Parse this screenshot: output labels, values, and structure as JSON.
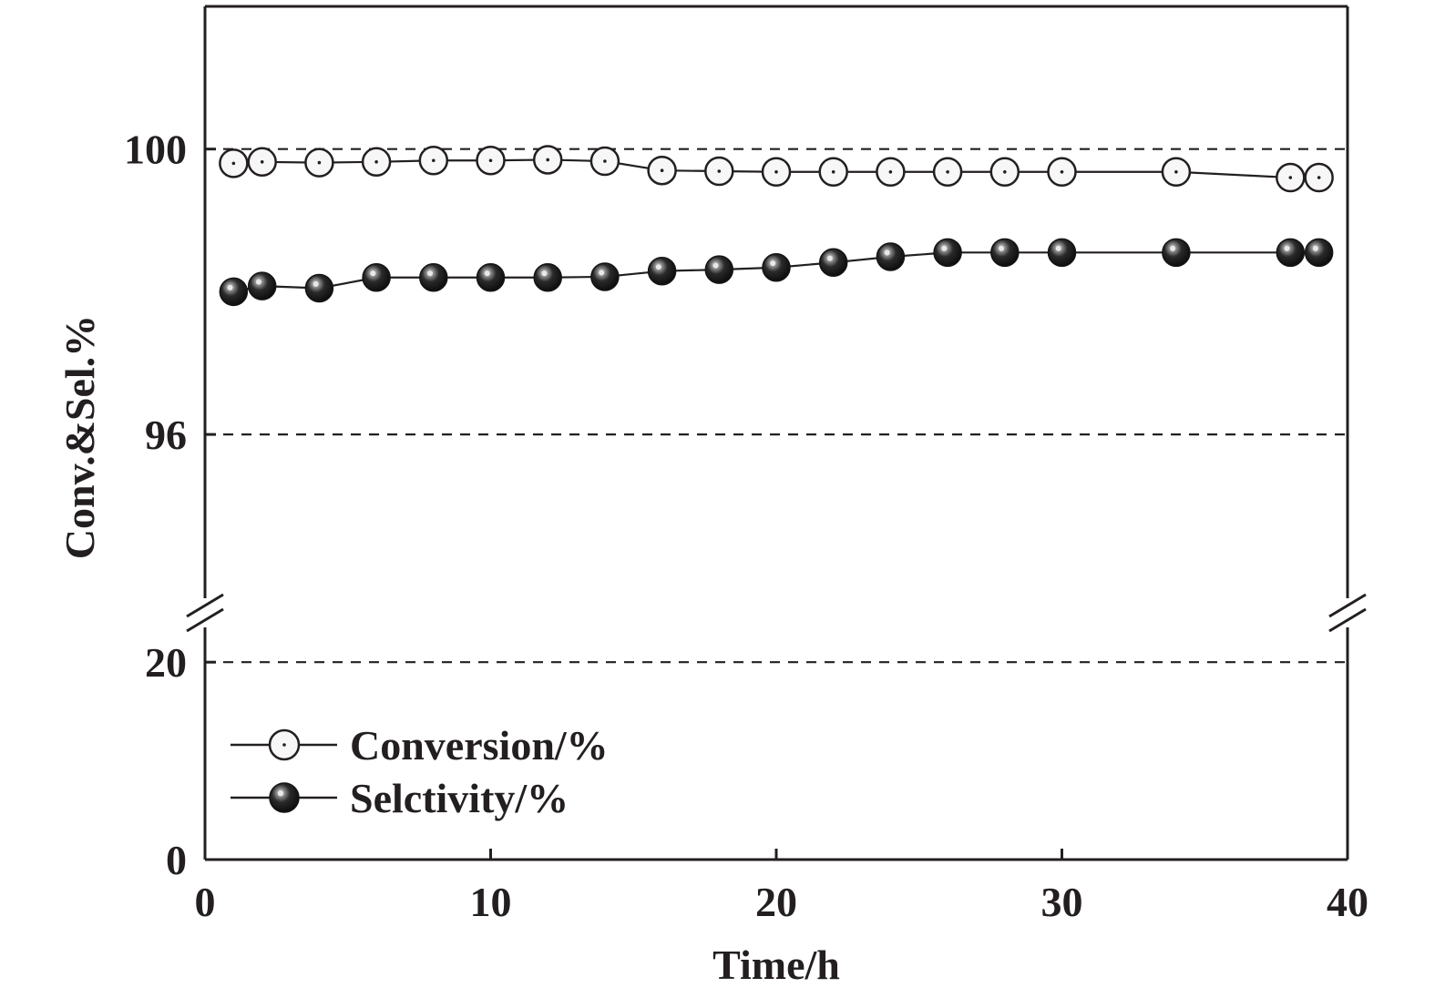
{
  "chart_data": {
    "type": "line",
    "title": "",
    "xlabel": "Time/h",
    "ylabel": "Conv.&Sel.%",
    "xlim": [
      0,
      40
    ],
    "x_ticks": [
      0,
      10,
      20,
      30,
      40
    ],
    "y_axis": {
      "broken": true,
      "lower_segment": {
        "range": [
          0,
          25
        ],
        "ticks": [
          0,
          20
        ]
      },
      "upper_segment": {
        "range": [
          93.5,
          102
        ],
        "ticks": [
          96,
          100
        ]
      }
    },
    "gridlines": {
      "style": "dashed",
      "y_values": [
        20,
        96,
        100
      ]
    },
    "legend_position": "bottom-left",
    "series": [
      {
        "name": "Conversion/%",
        "marker": "open-circle-with-center-dot",
        "x": [
          1,
          2,
          4,
          6,
          8,
          10,
          12,
          14,
          16,
          18,
          20,
          22,
          24,
          26,
          28,
          30,
          34,
          38,
          39
        ],
        "y": [
          99.8,
          99.82,
          99.81,
          99.82,
          99.84,
          99.84,
          99.85,
          99.83,
          99.7,
          99.69,
          99.68,
          99.68,
          99.68,
          99.68,
          99.68,
          99.68,
          99.68,
          99.6,
          99.6
        ]
      },
      {
        "name": "Selctivity/%",
        "marker": "filled-sphere",
        "x": [
          1,
          2,
          4,
          6,
          8,
          10,
          12,
          14,
          16,
          18,
          20,
          22,
          24,
          26,
          28,
          30,
          34,
          38,
          39
        ],
        "y": [
          98.0,
          98.08,
          98.05,
          98.2,
          98.2,
          98.2,
          98.2,
          98.21,
          98.29,
          98.31,
          98.34,
          98.41,
          98.49,
          98.55,
          98.55,
          98.55,
          98.55,
          98.55,
          98.55
        ]
      }
    ]
  },
  "colors": {
    "ink": "#231f20",
    "background": "#ffffff",
    "open_marker_fill": "#f7f7f7",
    "sphere_highlight": "#e8e8e8",
    "sphere_dark": "#141414"
  }
}
